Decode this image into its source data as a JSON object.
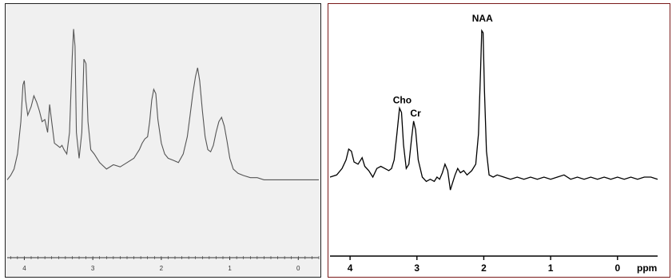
{
  "chart_data": [
    {
      "type": "line",
      "xlim": [
        4.25,
        -0.3
      ],
      "ylim": [
        0,
        1
      ],
      "xticks": [
        4,
        3,
        2,
        1,
        0
      ],
      "xtick_labels": [
        "4",
        "3",
        "2",
        "1",
        "0"
      ],
      "xlabel": "",
      "grid": false,
      "series": [
        {
          "points": [
            [
              4.25,
              0.28
            ],
            [
              4.2,
              0.3
            ],
            [
              4.15,
              0.33
            ],
            [
              4.1,
              0.4
            ],
            [
              4.05,
              0.55
            ],
            [
              4.02,
              0.72
            ],
            [
              4.0,
              0.74
            ],
            [
              3.98,
              0.65
            ],
            [
              3.95,
              0.58
            ],
            [
              3.9,
              0.62
            ],
            [
              3.86,
              0.67
            ],
            [
              3.82,
              0.64
            ],
            [
              3.78,
              0.6
            ],
            [
              3.74,
              0.55
            ],
            [
              3.7,
              0.56
            ],
            [
              3.66,
              0.5
            ],
            [
              3.63,
              0.63
            ],
            [
              3.6,
              0.55
            ],
            [
              3.56,
              0.45
            ],
            [
              3.52,
              0.44
            ],
            [
              3.48,
              0.43
            ],
            [
              3.45,
              0.44
            ],
            [
              3.42,
              0.42
            ],
            [
              3.38,
              0.4
            ],
            [
              3.34,
              0.5
            ],
            [
              3.3,
              0.85
            ],
            [
              3.28,
              0.98
            ],
            [
              3.26,
              0.9
            ],
            [
              3.24,
              0.5
            ],
            [
              3.2,
              0.38
            ],
            [
              3.16,
              0.5
            ],
            [
              3.13,
              0.84
            ],
            [
              3.1,
              0.82
            ],
            [
              3.07,
              0.55
            ],
            [
              3.03,
              0.42
            ],
            [
              2.98,
              0.4
            ],
            [
              2.9,
              0.36
            ],
            [
              2.8,
              0.33
            ],
            [
              2.7,
              0.35
            ],
            [
              2.6,
              0.34
            ],
            [
              2.5,
              0.36
            ],
            [
              2.4,
              0.38
            ],
            [
              2.32,
              0.42
            ],
            [
              2.28,
              0.45
            ],
            [
              2.24,
              0.47
            ],
            [
              2.2,
              0.48
            ],
            [
              2.17,
              0.55
            ],
            [
              2.14,
              0.65
            ],
            [
              2.11,
              0.7
            ],
            [
              2.08,
              0.68
            ],
            [
              2.05,
              0.56
            ],
            [
              2.0,
              0.45
            ],
            [
              1.95,
              0.4
            ],
            [
              1.9,
              0.38
            ],
            [
              1.82,
              0.37
            ],
            [
              1.75,
              0.36
            ],
            [
              1.68,
              0.4
            ],
            [
              1.62,
              0.48
            ],
            [
              1.58,
              0.58
            ],
            [
              1.54,
              0.68
            ],
            [
              1.5,
              0.76
            ],
            [
              1.47,
              0.8
            ],
            [
              1.44,
              0.74
            ],
            [
              1.4,
              0.6
            ],
            [
              1.36,
              0.48
            ],
            [
              1.32,
              0.42
            ],
            [
              1.28,
              0.41
            ],
            [
              1.24,
              0.44
            ],
            [
              1.2,
              0.5
            ],
            [
              1.16,
              0.55
            ],
            [
              1.12,
              0.57
            ],
            [
              1.08,
              0.53
            ],
            [
              1.04,
              0.46
            ],
            [
              1.0,
              0.38
            ],
            [
              0.95,
              0.33
            ],
            [
              0.88,
              0.31
            ],
            [
              0.8,
              0.3
            ],
            [
              0.7,
              0.29
            ],
            [
              0.6,
              0.29
            ],
            [
              0.5,
              0.28
            ],
            [
              0.4,
              0.28
            ],
            [
              0.3,
              0.28
            ],
            [
              0.2,
              0.28
            ],
            [
              0.1,
              0.28
            ],
            [
              0.0,
              0.28
            ],
            [
              -0.1,
              0.28
            ],
            [
              -0.2,
              0.28
            ],
            [
              -0.3,
              0.28
            ]
          ]
        }
      ]
    },
    {
      "type": "line",
      "xlim": [
        4.3,
        -0.6
      ],
      "ylim": [
        0,
        1
      ],
      "xticks": [
        4,
        3,
        2,
        1,
        0
      ],
      "xtick_labels": [
        "4",
        "3",
        "2",
        "1",
        "0"
      ],
      "xlabel": "ppm",
      "grid": false,
      "annotations": [
        {
          "text": "NAA",
          "x": 2.02,
          "y": 1.0
        },
        {
          "text": "Cho",
          "x": 3.22,
          "y": 0.62
        },
        {
          "text": "Cr",
          "x": 3.02,
          "y": 0.56
        }
      ],
      "series": [
        {
          "points": [
            [
              4.3,
              0.3
            ],
            [
              4.2,
              0.31
            ],
            [
              4.12,
              0.34
            ],
            [
              4.06,
              0.38
            ],
            [
              4.02,
              0.43
            ],
            [
              3.98,
              0.42
            ],
            [
              3.94,
              0.37
            ],
            [
              3.88,
              0.36
            ],
            [
              3.82,
              0.39
            ],
            [
              3.78,
              0.35
            ],
            [
              3.72,
              0.33
            ],
            [
              3.66,
              0.3
            ],
            [
              3.6,
              0.34
            ],
            [
              3.54,
              0.35
            ],
            [
              3.48,
              0.34
            ],
            [
              3.42,
              0.33
            ],
            [
              3.38,
              0.34
            ],
            [
              3.34,
              0.38
            ],
            [
              3.3,
              0.5
            ],
            [
              3.26,
              0.62
            ],
            [
              3.23,
              0.6
            ],
            [
              3.2,
              0.45
            ],
            [
              3.16,
              0.34
            ],
            [
              3.12,
              0.36
            ],
            [
              3.08,
              0.48
            ],
            [
              3.05,
              0.56
            ],
            [
              3.02,
              0.52
            ],
            [
              2.98,
              0.38
            ],
            [
              2.92,
              0.3
            ],
            [
              2.86,
              0.28
            ],
            [
              2.8,
              0.29
            ],
            [
              2.74,
              0.28
            ],
            [
              2.7,
              0.3
            ],
            [
              2.66,
              0.29
            ],
            [
              2.62,
              0.32
            ],
            [
              2.58,
              0.36
            ],
            [
              2.54,
              0.33
            ],
            [
              2.5,
              0.24
            ],
            [
              2.47,
              0.27
            ],
            [
              2.43,
              0.31
            ],
            [
              2.39,
              0.34
            ],
            [
              2.35,
              0.32
            ],
            [
              2.3,
              0.33
            ],
            [
              2.25,
              0.31
            ],
            [
              2.18,
              0.33
            ],
            [
              2.12,
              0.36
            ],
            [
              2.08,
              0.5
            ],
            [
              2.05,
              0.78
            ],
            [
              2.03,
              0.98
            ],
            [
              2.01,
              0.97
            ],
            [
              1.99,
              0.7
            ],
            [
              1.96,
              0.42
            ],
            [
              1.92,
              0.31
            ],
            [
              1.86,
              0.3
            ],
            [
              1.8,
              0.31
            ],
            [
              1.7,
              0.3
            ],
            [
              1.6,
              0.29
            ],
            [
              1.5,
              0.3
            ],
            [
              1.4,
              0.29
            ],
            [
              1.3,
              0.3
            ],
            [
              1.2,
              0.29
            ],
            [
              1.1,
              0.3
            ],
            [
              1.0,
              0.29
            ],
            [
              0.9,
              0.3
            ],
            [
              0.8,
              0.31
            ],
            [
              0.7,
              0.29
            ],
            [
              0.6,
              0.3
            ],
            [
              0.5,
              0.29
            ],
            [
              0.4,
              0.3
            ],
            [
              0.3,
              0.29
            ],
            [
              0.2,
              0.3
            ],
            [
              0.1,
              0.29
            ],
            [
              0.0,
              0.3
            ],
            [
              -0.1,
              0.29
            ],
            [
              -0.2,
              0.3
            ],
            [
              -0.3,
              0.29
            ],
            [
              -0.4,
              0.3
            ],
            [
              -0.5,
              0.3
            ],
            [
              -0.6,
              0.29
            ]
          ]
        }
      ]
    }
  ],
  "panels": {
    "right": {
      "unit_label": "ppm"
    }
  },
  "colors": {
    "left_trace": "#555555",
    "right_trace": "#000000",
    "left_bg": "#f0f0f0",
    "right_border": "#7a1a1a"
  }
}
